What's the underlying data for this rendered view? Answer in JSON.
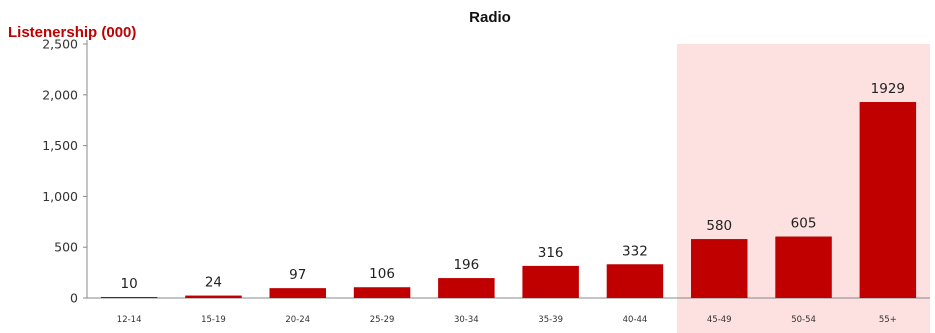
{
  "chart_data": {
    "type": "bar",
    "title": "Radio",
    "ylabel": "Listenership (000)",
    "xlabel": "",
    "categories": [
      "12-14",
      "15-19",
      "20-24",
      "25-29",
      "30-34",
      "35-39",
      "40-44",
      "45-49",
      "50-54",
      "55+"
    ],
    "values": [
      10,
      24,
      97,
      106,
      196,
      316,
      332,
      580,
      605,
      1929
    ],
    "data_labels": [
      "10",
      "24",
      "97",
      "106",
      "196",
      "316",
      "332",
      "580",
      "605",
      "1929"
    ],
    "ylim": [
      0,
      2500
    ],
    "yticks": [
      0,
      500,
      1000,
      1500,
      2000,
      2500
    ],
    "ytick_labels": [
      "0",
      "500",
      "1,000",
      "1,500",
      "2,000",
      "2,500"
    ],
    "highlight_categories": [
      "45-49",
      "50-54",
      "55+"
    ],
    "grid": false,
    "colors": {
      "bar": "#c00000",
      "highlight_band": "#fde0e0",
      "ylabel": "#c00000",
      "axis": "#888888"
    }
  }
}
